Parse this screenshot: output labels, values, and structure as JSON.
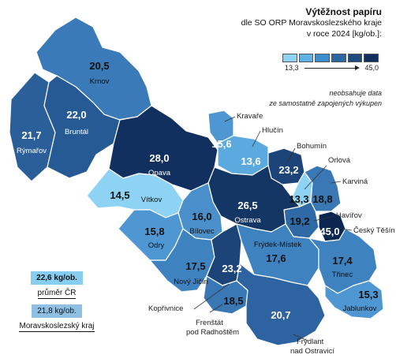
{
  "title": "Výtěžnost papíru",
  "subtitle_line1": "dle SO ORP Moravskoslezského kraje",
  "subtitle_line2": "v roce 2024 [kg/ob.]:",
  "legend": {
    "min": "13,3",
    "max": "45,0",
    "colors": [
      "#8fd3f4",
      "#5fb3e4",
      "#3b8dcb",
      "#2a67a3",
      "#1f4b7f",
      "#11305f"
    ]
  },
  "note_line1": "neobsahuje data",
  "note_line2": "ze samostatně zapojených výkupen",
  "stats": {
    "cr_value": "22,6 kg/ob.",
    "cr_label": "průměr ČR",
    "kraj_value": "21,8 kg/ob.",
    "kraj_label": "Moravskoslezský kraj"
  },
  "regions": [
    {
      "id": "krnov",
      "name": "Krnov",
      "value": "20,5",
      "color": "#3a7ab8"
    },
    {
      "id": "bruntal",
      "name": "Bruntál",
      "value": "22,0",
      "color": "#265a94"
    },
    {
      "id": "rymarov",
      "name": "Rýmařov",
      "value": "21,7",
      "color": "#2a5f99"
    },
    {
      "id": "opava",
      "name": "Opava",
      "value": "28,0",
      "color": "#11305f"
    },
    {
      "id": "kravare",
      "name": "Kravaře",
      "value": "15,6",
      "color": "#4f97d2"
    },
    {
      "id": "hlucin",
      "name": "Hlučín",
      "value": "13,6",
      "color": "#5aa9df"
    },
    {
      "id": "bohumin",
      "name": "Bohumín",
      "value": "23,2",
      "color": "#1c4478"
    },
    {
      "id": "orlova",
      "name": "Orlová",
      "value": "13,3",
      "color": "#8fd3f4"
    },
    {
      "id": "karvina",
      "name": "Karviná",
      "value": "18,8",
      "color": "#3a78b5"
    },
    {
      "id": "havirov",
      "name": "Havířov",
      "value": "19,2",
      "color": "#2f6aa6"
    },
    {
      "id": "ceskytesin",
      "name": "Český Těšín",
      "value": "45,0",
      "color": "#0c2652"
    },
    {
      "id": "ostrava",
      "name": "Ostrava",
      "value": "26,5",
      "color": "#143664"
    },
    {
      "id": "vitkov",
      "name": "Vítkov",
      "value": "14,5",
      "color": "#8fd3f4"
    },
    {
      "id": "bilovec",
      "name": "Bílovec",
      "value": "16,0",
      "color": "#4a8fca"
    },
    {
      "id": "odry",
      "name": "Odry",
      "value": "15,8",
      "color": "#4f97d2"
    },
    {
      "id": "novyjicin",
      "name": "Nový Jičín",
      "value": "17,5",
      "color": "#3f82c0"
    },
    {
      "id": "koprivnice",
      "name": "Kopřivnice",
      "value": "23,2",
      "color": "#1c4478"
    },
    {
      "id": "frenstat",
      "name": "Frenštát pod Radhoštěm",
      "value": "18,5",
      "color": "#3a78b5"
    },
    {
      "id": "frydekmistek",
      "name": "Frýdek-Místek",
      "value": "17,6",
      "color": "#3f82c0"
    },
    {
      "id": "trinec",
      "name": "Třinec",
      "value": "17,4",
      "color": "#3f82c0"
    },
    {
      "id": "jablunkov",
      "name": "Jablunkov",
      "value": "15,3",
      "color": "#4f97d2"
    },
    {
      "id": "frydlant",
      "name": "Frýdlant nad Ostravicí",
      "value": "20,7",
      "color": "#2d63a0"
    }
  ],
  "external_labels": {
    "koprivnice": "Kopřivnice",
    "frenstat_1": "Frenštát",
    "frenstat_2": "pod Radhoštěm",
    "frydlant_1": "Frýdlant",
    "frydlant_2": "nad Ostravicí"
  }
}
